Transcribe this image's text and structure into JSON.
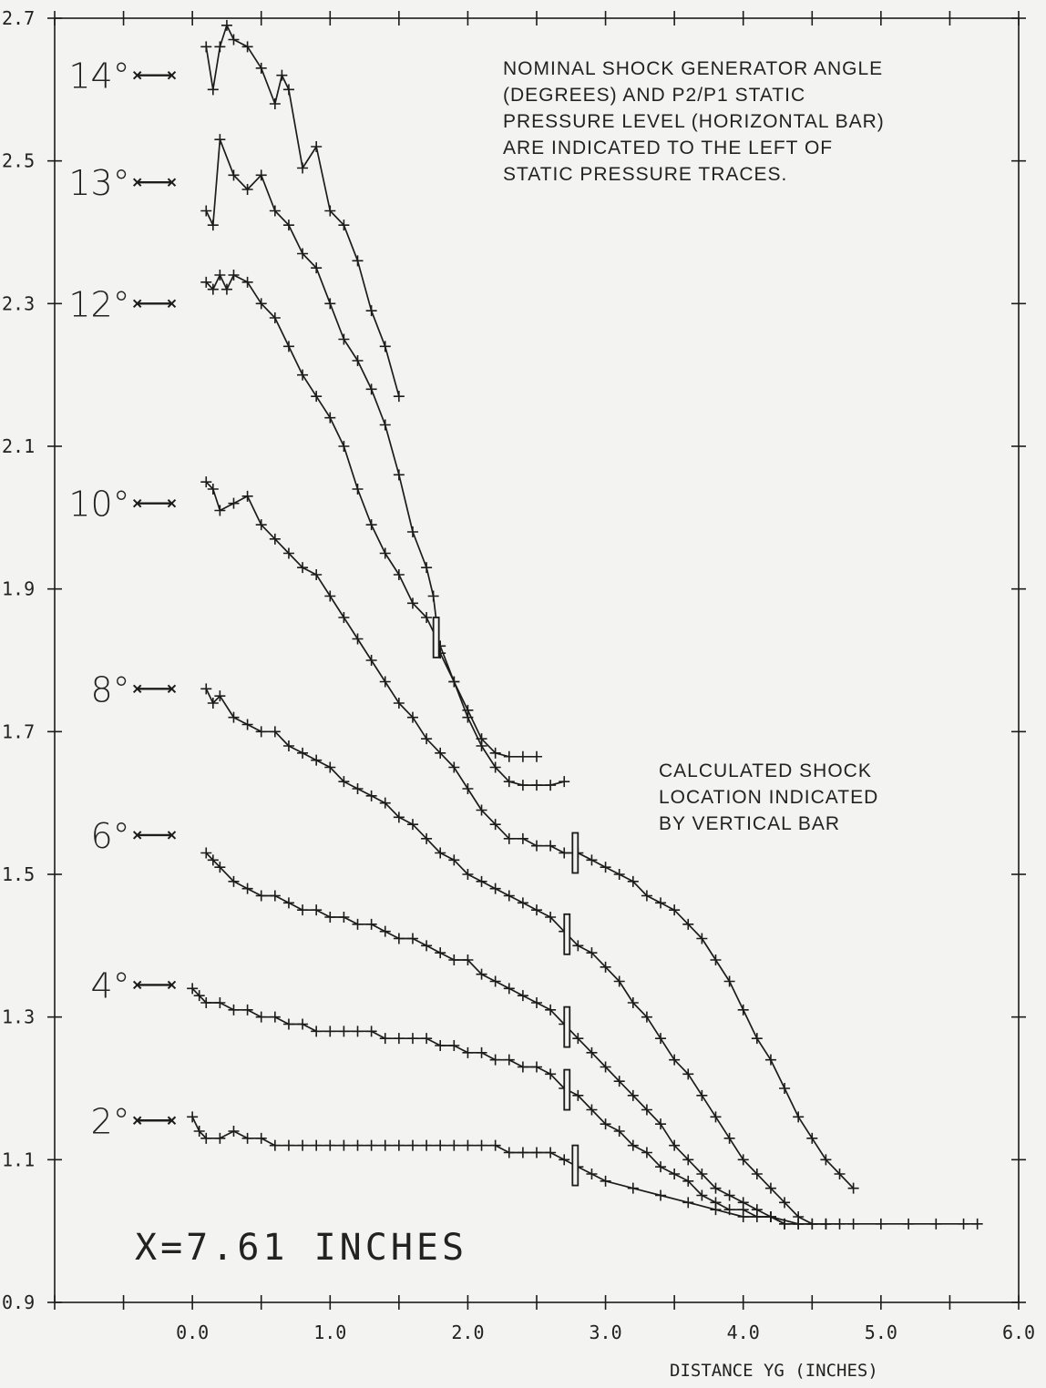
{
  "chart_data": {
    "type": "line",
    "title": "",
    "xlabel": "DISTANCE YG (INCHES)",
    "ylabel": "",
    "xlim": [
      -1.0,
      6.0
    ],
    "ylim": [
      0.9,
      2.7
    ],
    "x_ticks": [
      "0.0",
      "1.0",
      "2.0",
      "3.0",
      "4.0",
      "5.0",
      "6.0"
    ],
    "x_tick_values": [
      0,
      1,
      2,
      3,
      4,
      5,
      6
    ],
    "y_ticks": [
      "0.9",
      "1.1",
      "1.3",
      "1.5",
      "1.7",
      "1.9",
      "2.1",
      "2.3",
      "2.5",
      "2.7"
    ],
    "y_tick_values": [
      0.9,
      1.1,
      1.3,
      1.5,
      1.7,
      1.9,
      2.1,
      2.3,
      2.5,
      2.7
    ],
    "grid": false,
    "annotations": {
      "note_top": [
        "NOMINAL SHOCK GENERATOR ANGLE",
        "(DEGREES) AND P2/P1 STATIC",
        "PRESSURE LEVEL (HORIZONTAL BAR)",
        "ARE INDICATED TO THE LEFT OF",
        "STATIC PRESSURE TRACES."
      ],
      "note_shock": [
        "CALCULATED SHOCK",
        "LOCATION INDICATED",
        "BY VERTICAL BAR"
      ],
      "station": "X=7.61 INCHES"
    },
    "series": [
      {
        "name": "14°",
        "level": 2.62,
        "shock_x": null,
        "x": [
          0.1,
          0.15,
          0.2,
          0.25,
          0.3,
          0.4,
          0.5,
          0.6,
          0.65,
          0.7,
          0.8,
          0.9,
          1.0,
          1.1,
          1.2,
          1.3,
          1.4,
          1.5
        ],
        "y": [
          2.66,
          2.6,
          2.66,
          2.69,
          2.67,
          2.66,
          2.63,
          2.58,
          2.62,
          2.6,
          2.49,
          2.52,
          2.43,
          2.41,
          2.36,
          2.29,
          2.24,
          2.17
        ]
      },
      {
        "name": "13°",
        "level": 2.47,
        "shock_x": null,
        "x": [
          0.1,
          0.15,
          0.2,
          0.3,
          0.4,
          0.5,
          0.6,
          0.7,
          0.8,
          0.9,
          1.0,
          1.1,
          1.2,
          1.3,
          1.4,
          1.5,
          1.6,
          1.7,
          1.75,
          1.8,
          1.9,
          2.0,
          2.1,
          2.2,
          2.3,
          2.4,
          2.5
        ],
        "y": [
          2.43,
          2.41,
          2.53,
          2.48,
          2.46,
          2.48,
          2.43,
          2.41,
          2.37,
          2.35,
          2.3,
          2.25,
          2.22,
          2.18,
          2.13,
          2.06,
          1.98,
          1.93,
          1.89,
          1.81,
          1.77,
          1.73,
          1.69,
          1.67,
          1.665,
          1.665,
          1.665
        ]
      },
      {
        "name": "12°",
        "level": 2.3,
        "shock_x": 1.77,
        "x": [
          0.1,
          0.15,
          0.2,
          0.25,
          0.3,
          0.4,
          0.5,
          0.6,
          0.7,
          0.8,
          0.9,
          1.0,
          1.1,
          1.2,
          1.3,
          1.4,
          1.5,
          1.6,
          1.7,
          1.8,
          1.9,
          2.0,
          2.1,
          2.2,
          2.3,
          2.4,
          2.5,
          2.6,
          2.7
        ],
        "y": [
          2.33,
          2.32,
          2.34,
          2.32,
          2.34,
          2.33,
          2.3,
          2.28,
          2.24,
          2.2,
          2.17,
          2.14,
          2.1,
          2.04,
          1.99,
          1.95,
          1.92,
          1.88,
          1.86,
          1.82,
          1.77,
          1.72,
          1.68,
          1.65,
          1.63,
          1.625,
          1.625,
          1.625,
          1.63
        ]
      },
      {
        "name": "10°",
        "level": 2.02,
        "shock_x": 2.78,
        "x": [
          0.1,
          0.15,
          0.2,
          0.3,
          0.4,
          0.5,
          0.6,
          0.7,
          0.8,
          0.9,
          1.0,
          1.1,
          1.2,
          1.3,
          1.4,
          1.5,
          1.6,
          1.7,
          1.8,
          1.9,
          2.0,
          2.1,
          2.2,
          2.3,
          2.4,
          2.5,
          2.6,
          2.7,
          2.8,
          2.9,
          3.0,
          3.1,
          3.2,
          3.3,
          3.4,
          3.5,
          3.6,
          3.7,
          3.8,
          3.9,
          4.0,
          4.1,
          4.2,
          4.3,
          4.4,
          4.5,
          4.6,
          4.7,
          4.8
        ],
        "y": [
          2.05,
          2.04,
          2.01,
          2.02,
          2.03,
          1.99,
          1.97,
          1.95,
          1.93,
          1.92,
          1.89,
          1.86,
          1.83,
          1.8,
          1.77,
          1.74,
          1.72,
          1.69,
          1.67,
          1.65,
          1.62,
          1.59,
          1.57,
          1.55,
          1.55,
          1.54,
          1.54,
          1.53,
          1.53,
          1.52,
          1.51,
          1.5,
          1.49,
          1.47,
          1.46,
          1.45,
          1.43,
          1.41,
          1.38,
          1.35,
          1.31,
          1.27,
          1.24,
          1.2,
          1.16,
          1.13,
          1.1,
          1.08,
          1.06
        ]
      },
      {
        "name": "8°",
        "level": 1.76,
        "shock_x": 2.72,
        "x": [
          0.1,
          0.15,
          0.2,
          0.3,
          0.4,
          0.5,
          0.6,
          0.7,
          0.8,
          0.9,
          1.0,
          1.1,
          1.2,
          1.3,
          1.4,
          1.5,
          1.6,
          1.7,
          1.8,
          1.9,
          2.0,
          2.1,
          2.2,
          2.3,
          2.4,
          2.5,
          2.6,
          2.7,
          2.8,
          2.9,
          3.0,
          3.1,
          3.2,
          3.3,
          3.4,
          3.5,
          3.6,
          3.7,
          3.8,
          3.9,
          4.0,
          4.1,
          4.2,
          4.3,
          4.4,
          4.5,
          4.6,
          4.7
        ],
        "y": [
          1.76,
          1.74,
          1.75,
          1.72,
          1.71,
          1.7,
          1.7,
          1.68,
          1.67,
          1.66,
          1.65,
          1.63,
          1.62,
          1.61,
          1.6,
          1.58,
          1.57,
          1.55,
          1.53,
          1.52,
          1.5,
          1.49,
          1.48,
          1.47,
          1.46,
          1.45,
          1.44,
          1.42,
          1.4,
          1.39,
          1.37,
          1.35,
          1.32,
          1.3,
          1.27,
          1.24,
          1.22,
          1.19,
          1.16,
          1.13,
          1.1,
          1.08,
          1.06,
          1.04,
          1.02,
          1.01,
          1.01,
          1.01
        ]
      },
      {
        "name": "6°",
        "level": 1.555,
        "shock_x": 2.72,
        "x": [
          0.1,
          0.15,
          0.2,
          0.3,
          0.4,
          0.5,
          0.6,
          0.7,
          0.8,
          0.9,
          1.0,
          1.1,
          1.2,
          1.3,
          1.4,
          1.5,
          1.6,
          1.7,
          1.8,
          1.9,
          2.0,
          2.1,
          2.2,
          2.3,
          2.4,
          2.5,
          2.6,
          2.7,
          2.8,
          2.9,
          3.0,
          3.1,
          3.2,
          3.3,
          3.4,
          3.5,
          3.6,
          3.7,
          3.8,
          3.9,
          4.0,
          4.1,
          4.2,
          4.3,
          4.4,
          4.5,
          4.6
        ],
        "y": [
          1.53,
          1.52,
          1.51,
          1.49,
          1.48,
          1.47,
          1.47,
          1.46,
          1.45,
          1.45,
          1.44,
          1.44,
          1.43,
          1.43,
          1.42,
          1.41,
          1.41,
          1.4,
          1.39,
          1.38,
          1.38,
          1.36,
          1.35,
          1.34,
          1.33,
          1.32,
          1.31,
          1.29,
          1.27,
          1.25,
          1.23,
          1.21,
          1.19,
          1.17,
          1.15,
          1.12,
          1.1,
          1.08,
          1.06,
          1.05,
          1.04,
          1.03,
          1.02,
          1.01,
          1.01,
          1.01,
          1.01
        ]
      },
      {
        "name": "4°",
        "level": 1.345,
        "shock_x": 2.72,
        "x": [
          0.0,
          0.05,
          0.1,
          0.2,
          0.3,
          0.4,
          0.5,
          0.6,
          0.7,
          0.8,
          0.9,
          1.0,
          1.1,
          1.2,
          1.3,
          1.4,
          1.5,
          1.6,
          1.7,
          1.8,
          1.9,
          2.0,
          2.1,
          2.2,
          2.3,
          2.4,
          2.5,
          2.6,
          2.7,
          2.8,
          2.9,
          3.0,
          3.1,
          3.2,
          3.3,
          3.4,
          3.5,
          3.6,
          3.7,
          3.8,
          3.9,
          4.0,
          4.1,
          4.2,
          4.3,
          4.4,
          4.5
        ],
        "y": [
          1.34,
          1.33,
          1.32,
          1.32,
          1.31,
          1.31,
          1.3,
          1.3,
          1.29,
          1.29,
          1.28,
          1.28,
          1.28,
          1.28,
          1.28,
          1.27,
          1.27,
          1.27,
          1.27,
          1.26,
          1.26,
          1.25,
          1.25,
          1.24,
          1.24,
          1.23,
          1.23,
          1.22,
          1.2,
          1.19,
          1.17,
          1.15,
          1.14,
          1.12,
          1.11,
          1.09,
          1.08,
          1.07,
          1.05,
          1.04,
          1.03,
          1.03,
          1.02,
          1.02,
          1.01,
          1.01,
          1.01
        ]
      },
      {
        "name": "2°",
        "level": 1.155,
        "shock_x": 2.78,
        "x": [
          0.0,
          0.05,
          0.1,
          0.2,
          0.3,
          0.4,
          0.5,
          0.6,
          0.7,
          0.8,
          0.9,
          1.0,
          1.1,
          1.2,
          1.3,
          1.4,
          1.5,
          1.6,
          1.7,
          1.8,
          1.9,
          2.0,
          2.1,
          2.2,
          2.3,
          2.4,
          2.5,
          2.6,
          2.7,
          2.8,
          2.9,
          3.0,
          3.2,
          3.4,
          3.6,
          3.8,
          4.0,
          4.2,
          4.4,
          4.6,
          4.8,
          5.0,
          5.2,
          5.4,
          5.6,
          5.7
        ],
        "y": [
          1.16,
          1.14,
          1.13,
          1.13,
          1.14,
          1.13,
          1.13,
          1.12,
          1.12,
          1.12,
          1.12,
          1.12,
          1.12,
          1.12,
          1.12,
          1.12,
          1.12,
          1.12,
          1.12,
          1.12,
          1.12,
          1.12,
          1.12,
          1.12,
          1.11,
          1.11,
          1.11,
          1.11,
          1.1,
          1.09,
          1.08,
          1.07,
          1.06,
          1.05,
          1.04,
          1.03,
          1.02,
          1.02,
          1.01,
          1.01,
          1.01,
          1.01,
          1.01,
          1.01,
          1.01,
          1.01
        ]
      }
    ]
  }
}
